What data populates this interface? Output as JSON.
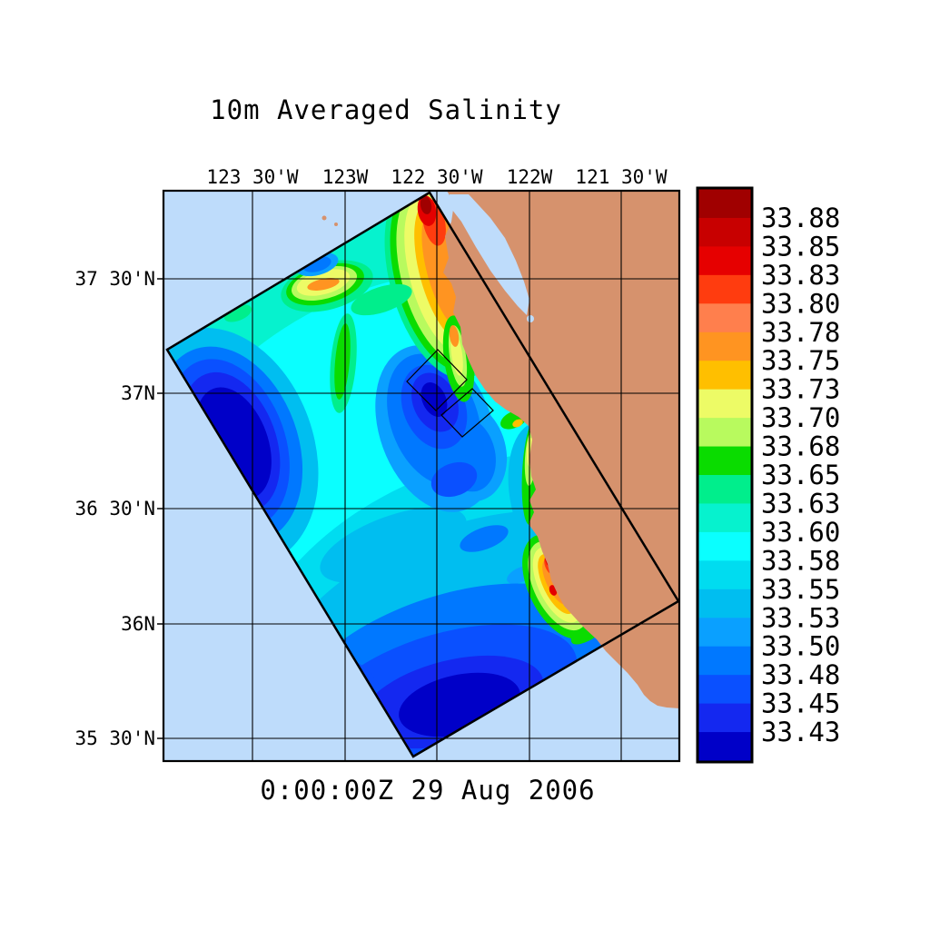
{
  "title": "10m Averaged Salinity",
  "timestamp": "0:00:00Z  29 Aug 2006",
  "axes": {
    "top": [
      "123 30'W",
      "123W",
      "122 30'W",
      "122W",
      "121 30'W"
    ],
    "left": [
      "37 30'N",
      "37N",
      "36 30'N",
      "36N",
      "35 30'N"
    ]
  },
  "colorbar": {
    "tick_labels": [
      "33.88",
      "33.85",
      "33.83",
      "33.80",
      "33.78",
      "33.75",
      "33.73",
      "33.70",
      "33.68",
      "33.65",
      "33.63",
      "33.60",
      "33.58",
      "33.55",
      "33.53",
      "33.50",
      "33.48",
      "33.45",
      "33.43"
    ],
    "colors_top_to_bottom": [
      "#A00000",
      "#C80000",
      "#E60000",
      "#FF3C0F",
      "#FF7F4D",
      "#FF9421",
      "#FFBF00",
      "#EDFB66",
      "#B8FA5E",
      "#0ADC00",
      "#00EE8C",
      "#06F2CE",
      "#0AFFFF",
      "#00DCF0",
      "#00BEF0",
      "#0AA0FF",
      "#0078FF",
      "#0A50FF",
      "#1428F0",
      "#0000C8"
    ]
  },
  "colors": {
    "background": "#FFFFFF",
    "outside_ocean": "#BEDCFB",
    "land": "#D6926D",
    "line": "#000000"
  },
  "chart_data": {
    "type": "heatmap",
    "title": "10m Averaged Salinity",
    "time_label": "0:00:00Z  29 Aug 2006",
    "x_axis": "longitude",
    "y_axis": "latitude",
    "x_tick_labels": [
      "123 30'W",
      "123W",
      "122 30'W",
      "122W",
      "121 30'W"
    ],
    "y_tick_labels": [
      "37 30'N",
      "37N",
      "36 30'N",
      "36N",
      "35 30'N"
    ],
    "grid": true,
    "legend_position": "right-colorbar",
    "colorbar_tick_values": [
      33.88,
      33.85,
      33.83,
      33.8,
      33.78,
      33.75,
      33.73,
      33.7,
      33.68,
      33.65,
      33.63,
      33.6,
      33.58,
      33.55,
      33.53,
      33.5,
      33.48,
      33.45,
      33.43
    ],
    "colorbar_colors_top_to_bottom": [
      "#A00000",
      "#C80000",
      "#E60000",
      "#FF3C0F",
      "#FF7F4D",
      "#FF9421",
      "#FFBF00",
      "#EDFB66",
      "#B8FA5E",
      "#0ADC00",
      "#00EE8C",
      "#06F2CE",
      "#0AFFFF",
      "#00DCF0",
      "#00BEF0",
      "#0AA0FF",
      "#0078FF",
      "#0A50FF",
      "#1428F0",
      "#0000C8"
    ],
    "features": [
      "tilted rectangular model domain over the central California coastal ocean, corners near (123.9W,37.2N),(122.6W,37.8N),(121.3W,36.2N),(122.6W,35.6N)",
      "high salinity upwelling bands (~33.73-33.88, yellow/orange/red with dark-red cores) hugging the coast near Point Reyes / San Francisco and along the Big Sur coast",
      "isolated yellow-orange salinity patch (~33.70-33.75) offshore near 123 30'W, 37 20'N",
      "low salinity pools (~33.43-33.50, dark blue) at the southwest domain edge, at domain center near 37N 122 30'W, and along the southern part of the domain",
      "background water mostly ~33.55-33.63 (cyan/turquoise)",
      "two small rotated survey boxes drawn near 37N, 122 30'W outside Monterey Bay",
      "tan land with San Francisco Bay and Farallon Islands visible; light blue ocean outside model domain"
    ]
  }
}
